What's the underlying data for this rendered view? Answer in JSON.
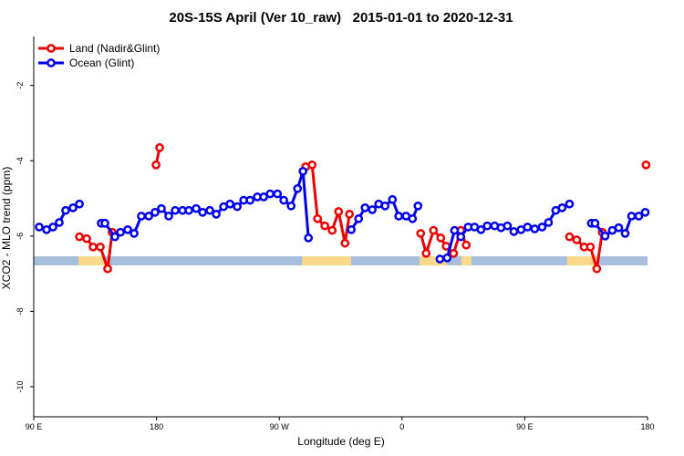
{
  "chart_data": {
    "type": "line",
    "title": "20S-15S April (Ver 10_raw)   2015-01-01 to 2020-12-31",
    "x_label": "Longitude (deg E)",
    "y_label": "XCO2 - MLO trend (ppm)",
    "xlim": [
      90,
      540
    ],
    "ylim": [
      -10.8,
      -0.7
    ],
    "xticks": [
      {
        "value": 90,
        "label": "90 E"
      },
      180,
      {
        "value": 270,
        "label": "90 W"
      },
      {
        "value": 360,
        "label": "0"
      },
      {
        "value": 450,
        "label": "90 E"
      },
      {
        "value": 540,
        "label": "180"
      }
    ],
    "yticks": [
      -2,
      -4,
      -6,
      -8,
      -10
    ],
    "legend": "top-left",
    "series": [
      {
        "name": "Land (Nadir&Glint)",
        "color": "#ee0000",
        "x": [
          123.5,
          128.8,
          133.5,
          138.8,
          144.2,
          147.5,
          null,
          179.7,
          182.3,
          null,
          289.4,
          294.1,
          298.1,
          303.4,
          308.8,
          313.5,
          318.2,
          321.5,
          null,
          373.7,
          377.7,
          383.1,
          388.4,
          392.4,
          397.8,
          403.1,
          407.1,
          null,
          482.8,
          488.1,
          493.5,
          498.1,
          502.8,
          506.8,
          null,
          538.9
        ],
        "values": [
          -6.02,
          -6.07,
          -6.29,
          -6.29,
          -6.87,
          -5.9,
          null,
          -4.11,
          -3.65,
          null,
          -4.16,
          -4.11,
          -5.54,
          -5.73,
          -5.85,
          -5.35,
          -6.19,
          -5.42,
          null,
          -5.93,
          -6.46,
          -5.85,
          -6.05,
          -6.27,
          -6.46,
          -5.85,
          -6.24,
          null,
          -6.02,
          -6.1,
          -6.29,
          -6.29,
          -6.87,
          -5.9,
          null,
          -4.11
        ]
      },
      {
        "name": "Ocean (Glint)",
        "color": "#0000ee",
        "x": [
          94.0,
          99.4,
          104.1,
          108.7,
          113.4,
          118.8,
          123.5,
          null,
          139.5,
          142.2,
          149.5,
          153.6,
          158.9,
          163.6,
          168.9,
          174.3,
          178.9,
          183.6,
          189.0,
          193.7,
          199.1,
          203.7,
          209.1,
          213.8,
          219.1,
          223.8,
          229.2,
          233.9,
          239.2,
          243.9,
          248.6,
          253.9,
          258.6,
          263.3,
          268.7,
          273.3,
          278.7,
          283.4,
          287.4,
          291.4,
          null,
          322.8,
          328.2,
          332.9,
          338.2,
          342.9,
          347.6,
          353.0,
          357.6,
          363.0,
          367.7,
          371.7,
          null,
          387.8,
          393.1,
          398.5,
          403.1,
          408.5,
          413.2,
          417.9,
          422.5,
          427.9,
          432.6,
          437.3,
          442.0,
          447.3,
          452.0,
          457.3,
          462.7,
          467.4,
          472.7,
          477.4,
          482.8,
          null,
          498.8,
          501.5,
          508.9,
          514.2,
          518.9,
          523.6,
          528.3,
          533.6,
          538.3
        ],
        "values": [
          -5.76,
          -5.83,
          -5.76,
          -5.64,
          -5.32,
          -5.25,
          -5.15,
          null,
          -5.66,
          -5.66,
          -6.02,
          -5.9,
          -5.83,
          -5.93,
          -5.47,
          -5.47,
          -5.37,
          -5.27,
          -5.47,
          -5.32,
          -5.32,
          -5.32,
          -5.27,
          -5.37,
          -5.32,
          -5.42,
          -5.22,
          -5.15,
          -5.22,
          -5.05,
          -5.05,
          -4.96,
          -4.96,
          -4.88,
          -4.88,
          -5.05,
          -5.2,
          -4.74,
          -4.28,
          -6.05,
          null,
          -5.83,
          -5.54,
          -5.25,
          -5.3,
          -5.15,
          -5.2,
          -5.03,
          -5.47,
          -5.47,
          -5.54,
          -5.2,
          null,
          -6.61,
          -6.58,
          -5.85,
          -6.02,
          -5.76,
          -5.76,
          -5.83,
          -5.73,
          -5.73,
          -5.78,
          -5.73,
          -5.88,
          -5.83,
          -5.76,
          -5.81,
          -5.76,
          -5.64,
          -5.32,
          -5.25,
          -5.15,
          null,
          -5.66,
          -5.66,
          -6.0,
          -5.85,
          -5.78,
          -5.93,
          -5.47,
          -5.47,
          -5.37
        ]
      }
    ]
  }
}
